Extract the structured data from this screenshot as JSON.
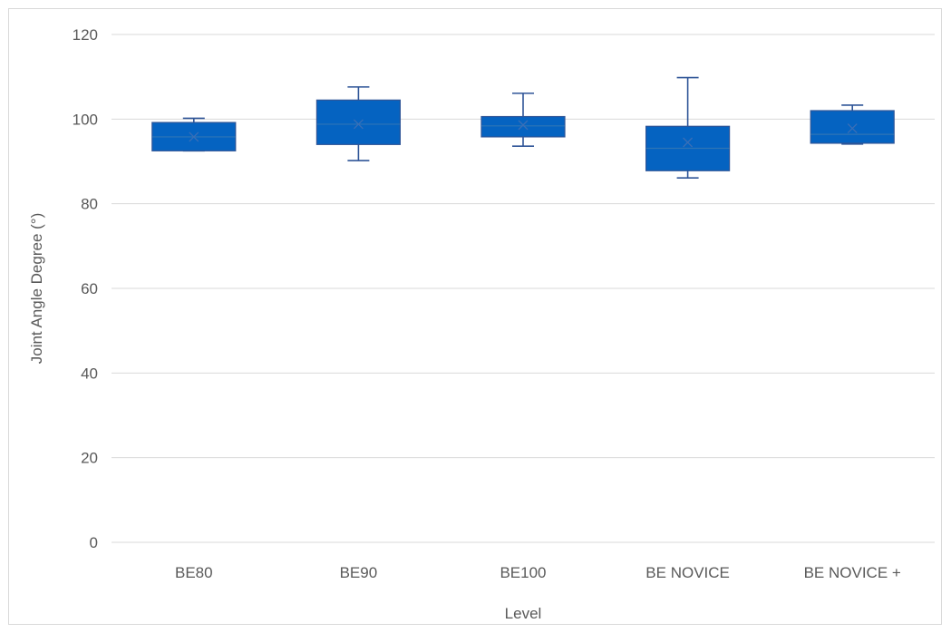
{
  "chart_data": {
    "type": "box",
    "title": "",
    "xlabel": "Level",
    "ylabel": "Joint Angle Degree (°)",
    "ylim": [
      0,
      120
    ],
    "yticks": [
      0,
      20,
      40,
      60,
      80,
      100,
      120
    ],
    "grid": true,
    "legend": "none",
    "colors": {
      "box_fill": "#0563C1",
      "box_stroke": "#2F5597",
      "whisker": "#2F5597",
      "gridline": "#d9d9d9",
      "text": "#595959"
    },
    "categories": [
      "BE80",
      "BE90",
      "BE100",
      "BE NOVICE",
      "BE NOVICE +"
    ],
    "boxes": [
      {
        "category": "BE80",
        "min": 92.5,
        "q1": 92.5,
        "median": 95.8,
        "q3": 99.2,
        "max": 100.2,
        "mean": 95.8
      },
      {
        "category": "BE90",
        "min": 90.2,
        "q1": 94.0,
        "median": 98.8,
        "q3": 104.5,
        "max": 107.6,
        "mean": 98.8
      },
      {
        "category": "BE100",
        "min": 93.6,
        "q1": 95.8,
        "median": 98.4,
        "q3": 100.6,
        "max": 106.1,
        "mean": 98.6
      },
      {
        "category": "BE NOVICE",
        "min": 86.1,
        "q1": 87.8,
        "median": 93.1,
        "q3": 98.3,
        "max": 109.8,
        "mean": 94.5
      },
      {
        "category": "BE NOVICE +",
        "min": 94.1,
        "q1": 94.3,
        "median": 96.4,
        "q3": 102.0,
        "max": 103.3,
        "mean": 97.8
      }
    ]
  }
}
